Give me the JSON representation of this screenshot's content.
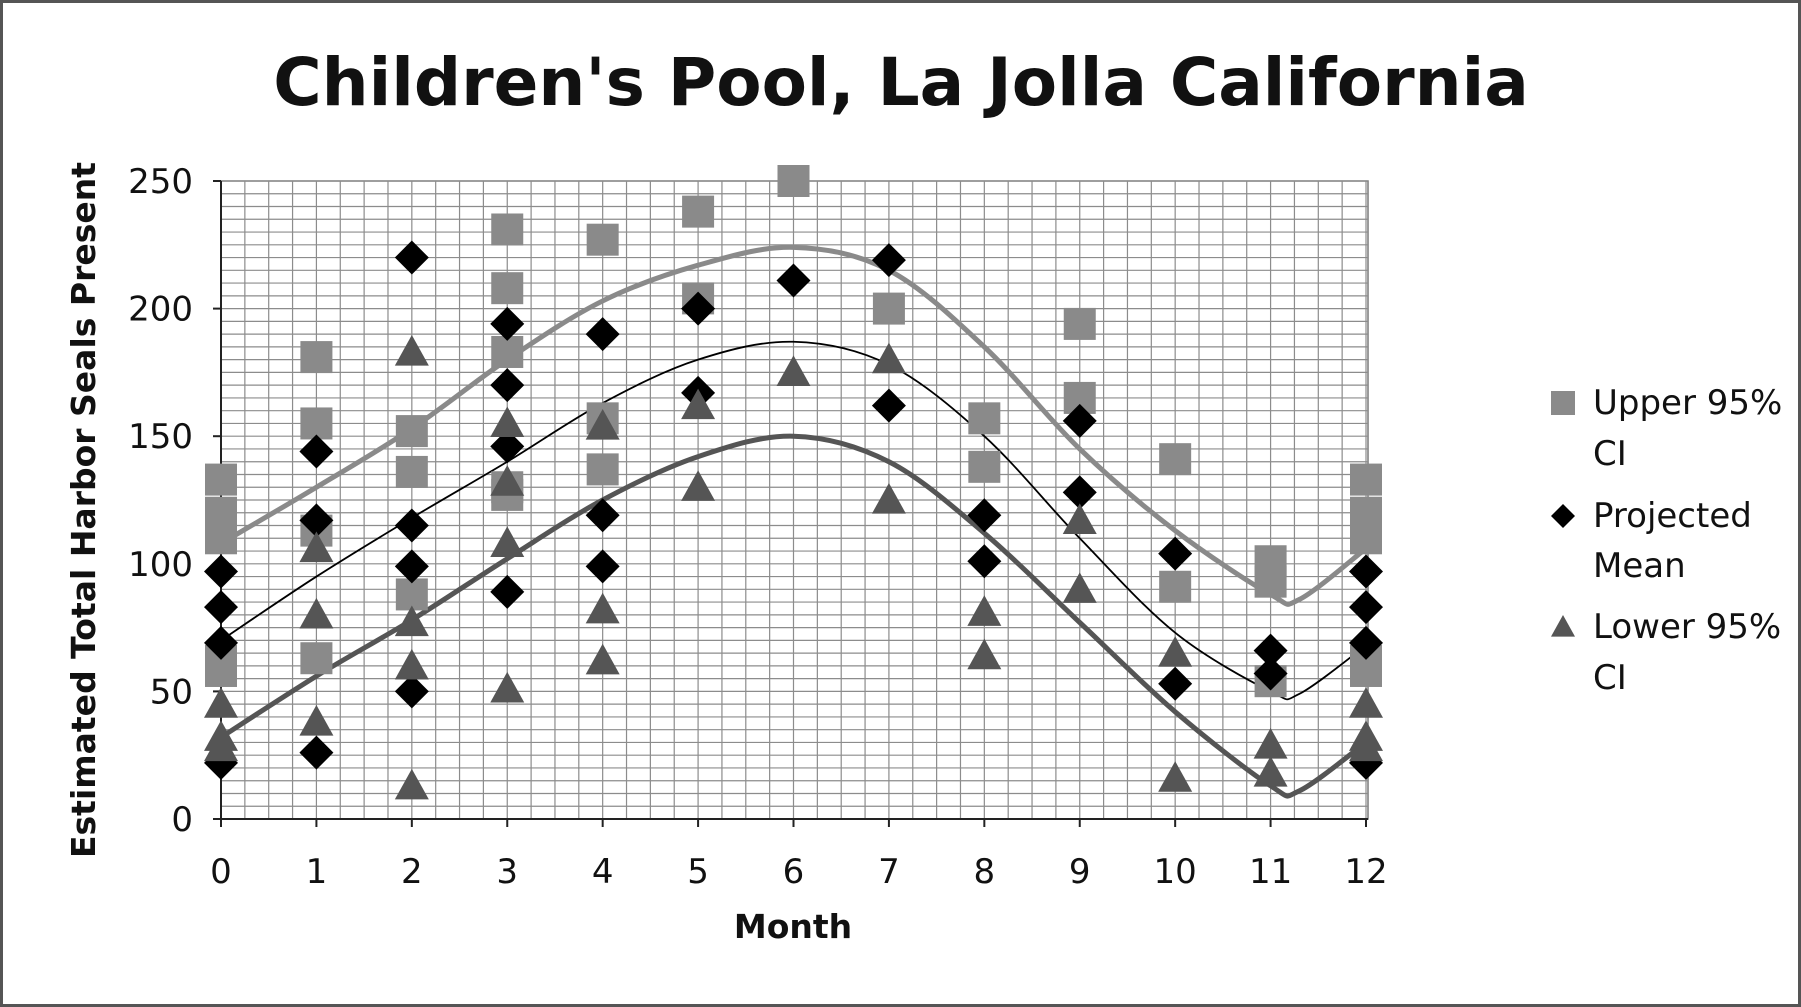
{
  "chart_data": {
    "type": "scatter",
    "title": "Children's Pool, La Jolla California",
    "xlabel": "Month",
    "ylabel": "Estimated Total Harbor  Seals Present",
    "xlim": [
      0,
      12
    ],
    "ylim": [
      0,
      250
    ],
    "xticks": [
      "0",
      "1",
      "2",
      "3",
      "4",
      "5",
      "6",
      "7",
      "8",
      "9",
      "10",
      "11",
      "12"
    ],
    "yticks": [
      "0",
      "50",
      "100",
      "150",
      "200",
      "250"
    ],
    "grid": true,
    "legend_position": "right",
    "colors": {
      "upper": "#8a8a8a",
      "mean": "#000000",
      "lower": "#555555"
    },
    "series": [
      {
        "name": "Upper 95% CI",
        "legend_lines": [
          "Upper 95%",
          "CI"
        ],
        "marker": "square",
        "points": [
          [
            0,
            133
          ],
          [
            0,
            120
          ],
          [
            0,
            110
          ],
          [
            0,
            58
          ],
          [
            0,
            62
          ],
          [
            1,
            181
          ],
          [
            1,
            155
          ],
          [
            1,
            113
          ],
          [
            1,
            63
          ],
          [
            2,
            152
          ],
          [
            2,
            136
          ],
          [
            2,
            88
          ],
          [
            3,
            231
          ],
          [
            3,
            208
          ],
          [
            3,
            183
          ],
          [
            3,
            130
          ],
          [
            3,
            127
          ],
          [
            4,
            227
          ],
          [
            4,
            157
          ],
          [
            4,
            137
          ],
          [
            5,
            238
          ],
          [
            5,
            204
          ],
          [
            6,
            250
          ],
          [
            7,
            200
          ],
          [
            8,
            157
          ],
          [
            8,
            138
          ],
          [
            9,
            194
          ],
          [
            9,
            165
          ],
          [
            10,
            141
          ],
          [
            10,
            91
          ],
          [
            11,
            101
          ],
          [
            11,
            93
          ],
          [
            11,
            54
          ],
          [
            12,
            133
          ],
          [
            12,
            120
          ],
          [
            12,
            110
          ],
          [
            12,
            58
          ],
          [
            12,
            62
          ]
        ],
        "trend": {
          "x": [
            0,
            1,
            2,
            3,
            4,
            5,
            6,
            7,
            8,
            9,
            10,
            11,
            11.3,
            12
          ],
          "y": [
            108,
            130,
            153,
            180,
            203,
            217,
            224,
            215,
            185,
            145,
            113,
            88,
            86,
            106
          ]
        }
      },
      {
        "name": "Projected Mean",
        "legend_lines": [
          "Projected",
          "Mean"
        ],
        "marker": "diamond",
        "points": [
          [
            0,
            97
          ],
          [
            0,
            83
          ],
          [
            0,
            69
          ],
          [
            0,
            22
          ],
          [
            1,
            144
          ],
          [
            1,
            117
          ],
          [
            1,
            26
          ],
          [
            2,
            220
          ],
          [
            2,
            115
          ],
          [
            2,
            99
          ],
          [
            2,
            50
          ],
          [
            3,
            194
          ],
          [
            3,
            170
          ],
          [
            3,
            146
          ],
          [
            3,
            89
          ],
          [
            4,
            190
          ],
          [
            4,
            119
          ],
          [
            4,
            99
          ],
          [
            5,
            200
          ],
          [
            5,
            167
          ],
          [
            6,
            211
          ],
          [
            7,
            219
          ],
          [
            7,
            162
          ],
          [
            8,
            119
          ],
          [
            8,
            101
          ],
          [
            9,
            156
          ],
          [
            9,
            128
          ],
          [
            10,
            104
          ],
          [
            10,
            53
          ],
          [
            11,
            66
          ],
          [
            11,
            57
          ],
          [
            12,
            97
          ],
          [
            12,
            83
          ],
          [
            12,
            69
          ],
          [
            12,
            22
          ]
        ],
        "trend": {
          "x": [
            0,
            1,
            2,
            3,
            4,
            5,
            6,
            7,
            8,
            9,
            10,
            11,
            11.3,
            12
          ],
          "y": [
            70,
            95,
            118,
            140,
            163,
            180,
            187,
            178,
            150,
            110,
            73,
            50,
            49,
            68
          ]
        }
      },
      {
        "name": "Lower 95% CI",
        "legend_lines": [
          "Lower 95%",
          "CI"
        ],
        "marker": "triangle",
        "points": [
          [
            0,
            45
          ],
          [
            0,
            32
          ],
          [
            0,
            28
          ],
          [
            1,
            106
          ],
          [
            1,
            80
          ],
          [
            1,
            38
          ],
          [
            2,
            183
          ],
          [
            2,
            77
          ],
          [
            2,
            60
          ],
          [
            2,
            13
          ],
          [
            3,
            155
          ],
          [
            3,
            132
          ],
          [
            3,
            108
          ],
          [
            3,
            51
          ],
          [
            4,
            154
          ],
          [
            4,
            82
          ],
          [
            4,
            62
          ],
          [
            5,
            162
          ],
          [
            5,
            130
          ],
          [
            6,
            175
          ],
          [
            7,
            180
          ],
          [
            7,
            125
          ],
          [
            8,
            81
          ],
          [
            8,
            64
          ],
          [
            9,
            117
          ],
          [
            9,
            90
          ],
          [
            10,
            65
          ],
          [
            10,
            16
          ],
          [
            11,
            29
          ],
          [
            11,
            18
          ],
          [
            12,
            45
          ],
          [
            12,
            32
          ],
          [
            12,
            28
          ]
        ],
        "trend": {
          "x": [
            0,
            1,
            2,
            3,
            4,
            5,
            6,
            7,
            8,
            9,
            10,
            11,
            11.3,
            12
          ],
          "y": [
            32,
            56,
            78,
            102,
            125,
            142,
            150,
            140,
            112,
            77,
            42,
            13,
            11,
            30
          ]
        }
      }
    ]
  }
}
